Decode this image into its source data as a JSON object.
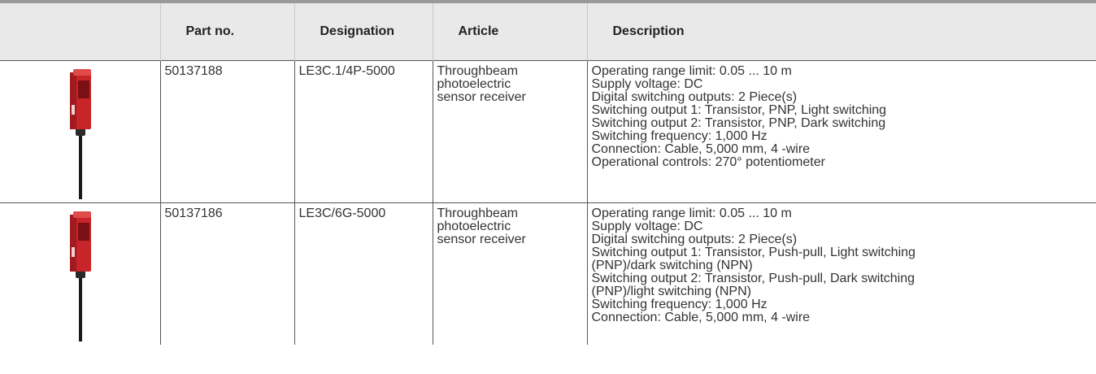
{
  "table": {
    "headers": [
      "Part no.",
      "Designation",
      "Article",
      "Description"
    ],
    "rows": [
      {
        "part_no": "50137188",
        "designation": "LE3C.1/4P-5000",
        "article": [
          "Throughbeam",
          "photoelectric",
          "sensor receiver"
        ],
        "description": [
          "Operating range limit: 0.05 ... 10 m",
          "Supply voltage: DC",
          "Digital switching outputs: 2 Piece(s)",
          "Switching output 1: Transistor, PNP, Light switching",
          "Switching output 2: Transistor, PNP, Dark switching",
          "Switching frequency: 1,000 Hz",
          "Connection: Cable, 5,000 mm, 4 -wire",
          "Operational controls: 270° potentiometer"
        ]
      },
      {
        "part_no": "50137186",
        "designation": "LE3C/6G-5000",
        "article": [
          "Throughbeam",
          "photoelectric",
          "sensor receiver"
        ],
        "description": [
          "Operating range limit: 0.05 ... 10 m",
          "Supply voltage: DC",
          "Digital switching outputs: 2 Piece(s)",
          "Switching output 1: Transistor, Push-pull, Light switching",
          "(PNP)/dark switching (NPN)",
          "Switching output 2: Transistor, Push-pull, Dark switching",
          "(PNP)/light switching (NPN)",
          "Switching frequency: 1,000 Hz",
          "Connection: Cable, 5,000 mm, 4 -wire"
        ]
      }
    ]
  }
}
